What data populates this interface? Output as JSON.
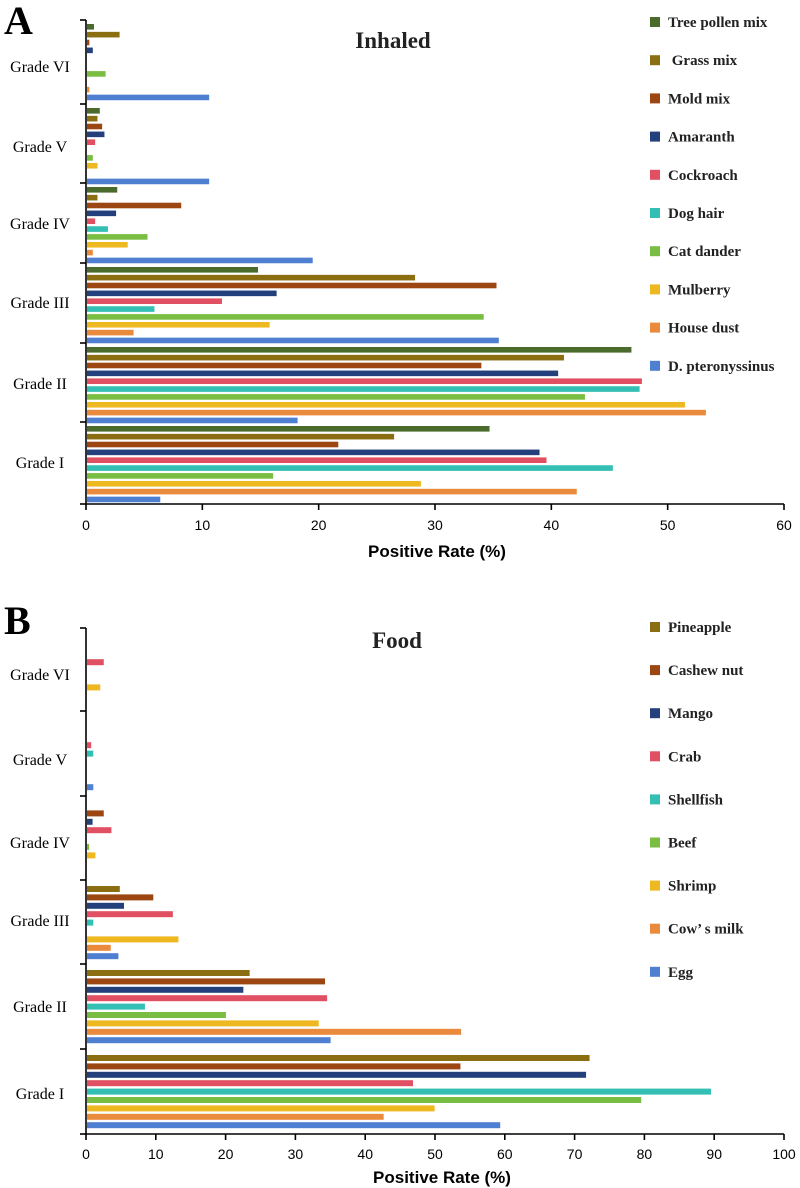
{
  "chart_data": [
    {
      "type": "bar",
      "orientation": "horizontal",
      "panel": "A",
      "title": "Inhaled",
      "xlabel": "Positive Rate (%)",
      "xlim": [
        0,
        60
      ],
      "xticks": [
        0,
        10,
        20,
        30,
        40,
        50,
        60
      ],
      "legend_position": "right",
      "categories": [
        "Grade I",
        "Grade II",
        "Grade III",
        "Grade IV",
        "Grade V",
        "Grade VI"
      ],
      "series": [
        {
          "name": "Tree pollen mix",
          "color": "#4a6b2c",
          "values": [
            34.6,
            46.8,
            14.7,
            2.6,
            1.1,
            0.6
          ]
        },
        {
          "name": " Grass mix",
          "color": "#8b6d12",
          "values": [
            26.4,
            41.0,
            28.2,
            0.9,
            0.9,
            2.8
          ]
        },
        {
          "name": "Mold mix",
          "color": "#9c4712",
          "values": [
            21.6,
            33.9,
            35.2,
            8.1,
            1.3,
            0.2
          ]
        },
        {
          "name": "Amaranth",
          "color": "#24407c",
          "values": [
            38.9,
            40.5,
            16.3,
            2.5,
            1.5,
            0.5
          ]
        },
        {
          "name": "Cockroach",
          "color": "#e04f62",
          "values": [
            39.5,
            47.7,
            11.6,
            0.7,
            0.7,
            0.0
          ]
        },
        {
          "name": "Dog hair",
          "color": "#33bfb4",
          "values": [
            45.2,
            47.5,
            5.8,
            1.8,
            0.0,
            0.0
          ]
        },
        {
          "name": "Cat dander",
          "color": "#79bd42",
          "values": [
            16.0,
            42.8,
            34.1,
            5.2,
            0.5,
            1.6
          ]
        },
        {
          "name": "Mulberry",
          "color": "#eeb820",
          "values": [
            28.7,
            51.4,
            15.7,
            3.5,
            0.9,
            0.0
          ]
        },
        {
          "name": "House dust",
          "color": "#e98a3d",
          "values": [
            42.1,
            53.2,
            4.0,
            0.5,
            0.0,
            0.2
          ]
        },
        {
          "name": "D. pteronyssinus",
          "color": "#4f7fd0",
          "values": [
            6.3,
            18.1,
            35.4,
            19.4,
            10.5,
            10.5
          ]
        }
      ]
    },
    {
      "type": "bar",
      "orientation": "horizontal",
      "panel": "B",
      "title": "Food",
      "xlabel": "Positive Rate (%)",
      "xlim": [
        0,
        100
      ],
      "xticks": [
        0,
        10,
        20,
        30,
        40,
        50,
        60,
        70,
        80,
        90,
        100
      ],
      "legend_position": "right",
      "categories": [
        "Grade I",
        "Grade II",
        "Grade III",
        "Grade IV",
        "Grade V",
        "Grade VI"
      ],
      "series": [
        {
          "name": "Pineapple",
          "color": "#8b6d12",
          "values": [
            72.0,
            23.3,
            4.7,
            0.0,
            0.0,
            0.0
          ]
        },
        {
          "name": "Cashew nut",
          "color": "#9c4712",
          "values": [
            53.5,
            34.1,
            9.5,
            2.4,
            0.0,
            0.0
          ]
        },
        {
          "name": "Mango",
          "color": "#24407c",
          "values": [
            71.5,
            22.4,
            5.3,
            0.8,
            0.0,
            0.0
          ]
        },
        {
          "name": "Crab",
          "color": "#e04f62",
          "values": [
            46.7,
            34.4,
            12.3,
            3.5,
            0.6,
            2.4
          ]
        },
        {
          "name": "Shellfish",
          "color": "#33bfb4",
          "values": [
            89.4,
            8.3,
            0.9,
            0.0,
            0.9,
            0.0
          ]
        },
        {
          "name": "Beef",
          "color": "#79bd42",
          "values": [
            79.4,
            19.9,
            0.0,
            0.3,
            0.0,
            0.0
          ]
        },
        {
          "name": "Shrimp",
          "color": "#eeb820",
          "values": [
            49.8,
            33.2,
            13.1,
            1.2,
            0.0,
            1.9
          ]
        },
        {
          "name": "Cow’s milk",
          "color": "#e98a3d",
          "values": [
            42.5,
            53.6,
            3.4,
            0.0,
            0.0,
            0.0
          ]
        },
        {
          "name": "Egg",
          "color": "#4f7fd0",
          "values": [
            59.2,
            34.9,
            4.5,
            0.0,
            0.9,
            0.0
          ]
        }
      ]
    }
  ],
  "panel_labels": {
    "a": "A",
    "b": "B"
  },
  "legend_display": {
    "b_cows_milk": "Cow’ s milk"
  }
}
